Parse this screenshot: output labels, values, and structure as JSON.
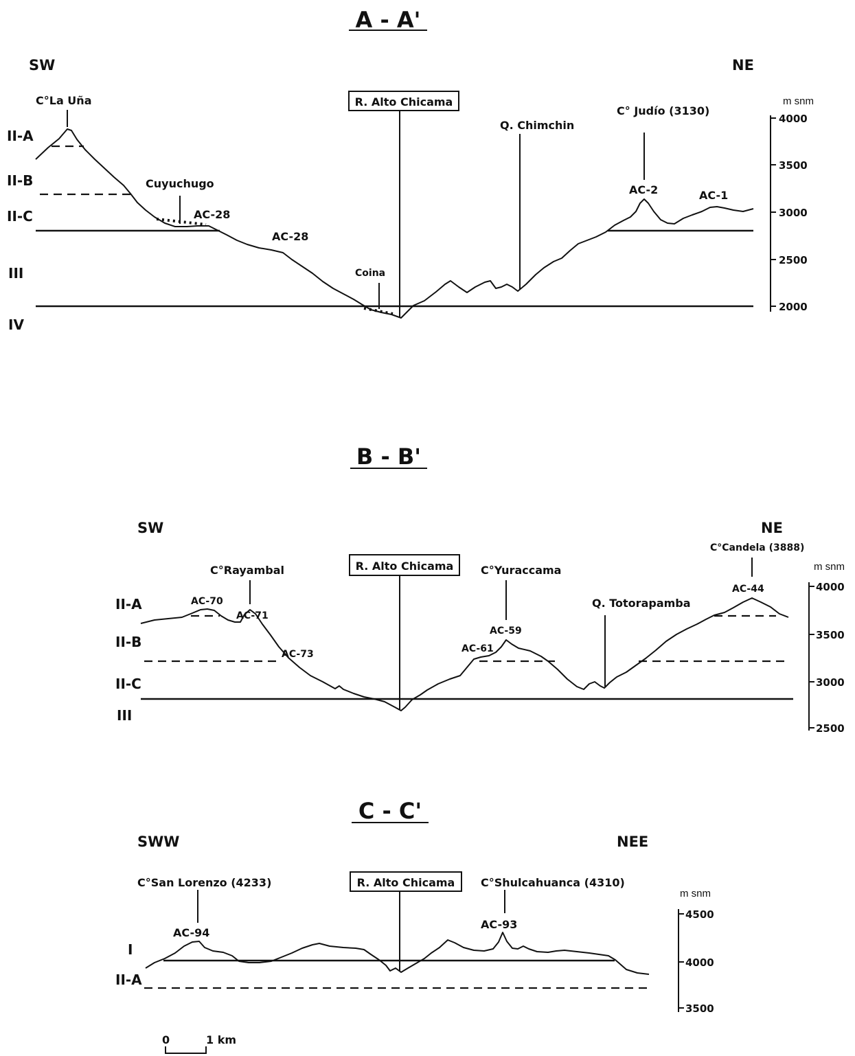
{
  "sections": {
    "a": {
      "title": "A - A'",
      "left_dir": "SW",
      "right_dir": "NE",
      "unit": "m snm",
      "zones": [
        "II-A",
        "II-B",
        "II-C",
        "III",
        "IV"
      ],
      "ticks": [
        "4000",
        "3500",
        "3000",
        "2500",
        "2000"
      ],
      "river": "R. Alto Chicama",
      "labels": {
        "la_una": "C°La Uña",
        "cuyuchugo": "Cuyuchugo",
        "ac28a": "AC-28",
        "ac28b": "AC-28",
        "coina": "Coina",
        "chimchin": "Q. Chimchin",
        "judio": "C° Judío (3130)",
        "ac2": "AC-2",
        "ac1": "AC-1"
      }
    },
    "b": {
      "title": "B - B'",
      "left_dir": "SW",
      "right_dir": "NE",
      "unit": "m snm",
      "zones": [
        "II-A",
        "II-B",
        "II-C",
        "III"
      ],
      "ticks": [
        "4000",
        "3500",
        "3000",
        "2500"
      ],
      "river": "R. Alto Chicama",
      "labels": {
        "rayambal": "C°Rayambal",
        "ac70": "AC-70",
        "ac71": "AC-71",
        "ac73": "AC-73",
        "yuraccama": "C°Yuraccama",
        "ac59": "AC-59",
        "ac61": "AC-61",
        "totorapamba": "Q. Totorapamba",
        "candela": "C°Candela (3888)",
        "ac44": "AC-44"
      }
    },
    "c": {
      "title": "C - C'",
      "left_dir": "SWW",
      "right_dir": "NEE",
      "unit": "m snm",
      "zones": [
        "I",
        "II-A"
      ],
      "ticks": [
        "4500",
        "4000",
        "3500"
      ],
      "river": "R. Alto Chicama",
      "labels": {
        "san_lorenzo": "C°San Lorenzo (4233)",
        "ac94": "AC-94",
        "shulcahuanca": "C°Shulcahuanca (4310)",
        "ac93": "AC-93"
      }
    }
  },
  "scale": {
    "zero": "0",
    "km": "1 km"
  }
}
